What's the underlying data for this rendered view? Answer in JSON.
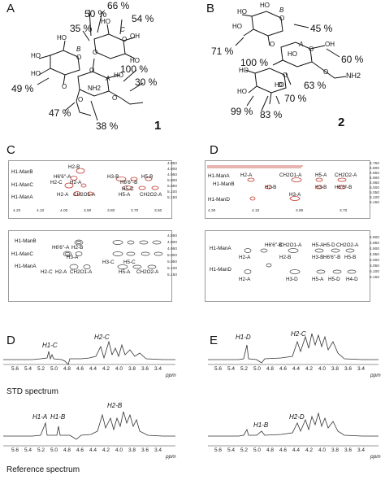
{
  "panel_letters": [
    "A",
    "B",
    "C",
    "D",
    "D",
    "E"
  ],
  "compound_labels": [
    "1",
    "2"
  ],
  "structure_A": {
    "percentages": [
      "66 %",
      "50 %",
      "54 %",
      "35 %",
      "100 %",
      "30 %",
      "49 %",
      "47 %",
      "38 %"
    ],
    "ring_labels": [
      "B",
      "C",
      "A"
    ],
    "atoms": [
      "HO",
      "HO",
      "HO",
      "OH",
      "HO",
      "HO",
      "HO",
      "O",
      "O",
      "O",
      "O",
      "O",
      "O",
      "O",
      "NH2"
    ]
  },
  "structure_B": {
    "percentages": [
      "45 %",
      "71 %",
      "60 %",
      "100 %",
      "63 %",
      "70 %",
      "99 %",
      "83 %"
    ],
    "ring_labels": [
      "B",
      "A",
      "D"
    ],
    "atoms": [
      "HO",
      "HO",
      "HO",
      "OH",
      "HO",
      "HO",
      "HO",
      "HO",
      "O",
      "O",
      "O",
      "O",
      "O",
      "NH2"
    ]
  },
  "nmr_C": {
    "top": {
      "left_labels": [
        "H1-ManB",
        "H1-ManC",
        "H1-ManA"
      ],
      "peak_labels": [
        "H2-B",
        "H6'6\"-A",
        "H2-C",
        "H3-B",
        "H6'6\"-B",
        "H5-B",
        "H2-A",
        "H5-C",
        "H2-A",
        "CH2O1-A",
        "H5-A",
        "CH2O2-A"
      ],
      "x_ticks": [
        "4.20",
        "4.10",
        "4.00",
        "3.90",
        "3.80",
        "3.70",
        "3.60"
      ],
      "y_ticks": [
        "4.850",
        "4.900",
        "4.950",
        "5.000",
        "5.050",
        "5.100",
        "5.150"
      ]
    },
    "bottom": {
      "left_labels": [
        "H1-ManB",
        "H1-ManC",
        "H1-ManA"
      ],
      "peak_labels": [
        "H6'6\"-A",
        "H2-B",
        "H3-A",
        "H2-C",
        "H2-A",
        "CH2O1-A",
        "H3-C",
        "H5-C",
        "H5-A",
        "CH2O2-A"
      ],
      "y_ticks": [
        "4.850",
        "4.900",
        "4.950",
        "5.000",
        "5.050",
        "5.100",
        "5.150"
      ]
    }
  },
  "nmr_D": {
    "top": {
      "left_labels": [
        "H1-ManA",
        "H1-ManB",
        "H1-ManD"
      ],
      "peak_labels": [
        "H2-A",
        "CH2O1-A",
        "H5-A",
        "CH2O2-A",
        "H2-B",
        "H3-B",
        "H6'6\"-B",
        "H3-A"
      ],
      "x_ticks": [
        "4.30",
        "4.10",
        "3.90",
        "3.70"
      ],
      "y_ticks": [
        "4.750",
        "4.800",
        "4.850",
        "4.900",
        "4.950",
        "5.000",
        "5.050",
        "5.100",
        "5.150"
      ]
    },
    "bottom": {
      "left_labels": [
        "H1-ManA",
        "H1-ManD"
      ],
      "peak_labels": [
        "H6'6\"-B",
        "CH2O1-A",
        "H5-A",
        "H5-D",
        "CH2O2-A",
        "H2-A",
        "H2-B",
        "H3-B",
        "H6'6\"-B",
        "H5-B",
        "H2-A",
        "H3-D",
        "H5-A",
        "H5-D",
        "H4-D"
      ],
      "y_ticks": [
        "4.800",
        "4.850",
        "4.900",
        "4.950",
        "5.000",
        "5.050",
        "5.100",
        "5.150"
      ]
    }
  },
  "spectrum_D": {
    "top_labels": [
      "H1-C",
      "H2-C"
    ],
    "bottom_labels": [
      "H1-A",
      "H1-B",
      "H2-B"
    ],
    "x_ticks": [
      "5.6",
      "5.4",
      "5.2",
      "5.0",
      "4.8",
      "4.6",
      "4.4",
      "4.2",
      "4.0",
      "3.8",
      "3.6",
      "3.4"
    ],
    "unit": "ppm"
  },
  "spectrum_E": {
    "top_labels": [
      "H1-D",
      "H2-C"
    ],
    "bottom_labels": [
      "H1-B",
      "H2-D"
    ],
    "x_ticks": [
      "5.6",
      "5.4",
      "5.2",
      "5.0",
      "4.8",
      "4.6",
      "4.4",
      "4.2",
      "4.0",
      "3.8",
      "3.6",
      "3.4"
    ],
    "unit": "ppm"
  },
  "captions": {
    "std": "STD spectrum",
    "reference": "Reference spectrum"
  }
}
